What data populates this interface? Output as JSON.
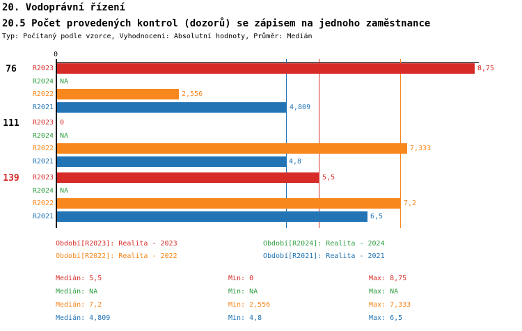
{
  "header": {
    "title": "20. Vodoprávní řízení",
    "subtitle": "20.5 Počet provedených kontrol (dozorů) se zápisem na jednoho zaměstnance",
    "meta": "Typ: Počítaný podle vzorce, Vyhodnocení: Absolutní hodnoty, Průměr: Medián"
  },
  "colors": {
    "R2023": "#d62b27",
    "R2024": "#2f9e41",
    "R2022": "#f8871d",
    "R2021": "#2274b4",
    "axis": "#000000",
    "group_label_default": "#000000"
  },
  "chart_data": {
    "type": "bar",
    "orientation": "horizontal",
    "title": "20.5 Počet provedených kontrol (dozorů) se zápisem na jednoho zaměstnance",
    "xlim": [
      0,
      8.75
    ],
    "zero_tick_label": "0",
    "series_order": [
      "R2023",
      "R2024",
      "R2022",
      "R2021"
    ],
    "groups": [
      {
        "label": "76",
        "label_color": "#000000",
        "bars": [
          {
            "series": "R2023",
            "value": 8.75,
            "value_label": "8,75"
          },
          {
            "series": "R2024",
            "value": null,
            "value_label": "NA"
          },
          {
            "series": "R2022",
            "value": 2.556,
            "value_label": "2,556"
          },
          {
            "series": "R2021",
            "value": 4.809,
            "value_label": "4,809"
          }
        ]
      },
      {
        "label": "111",
        "label_color": "#000000",
        "bars": [
          {
            "series": "R2023",
            "value": 0,
            "value_label": "0"
          },
          {
            "series": "R2024",
            "value": null,
            "value_label": "NA"
          },
          {
            "series": "R2022",
            "value": 7.333,
            "value_label": "7,333"
          },
          {
            "series": "R2021",
            "value": 4.8,
            "value_label": "4,8"
          }
        ]
      },
      {
        "label": "139",
        "label_color": "#d62b27",
        "bars": [
          {
            "series": "R2023",
            "value": 5.5,
            "value_label": "5,5"
          },
          {
            "series": "R2024",
            "value": null,
            "value_label": "NA"
          },
          {
            "series": "R2022",
            "value": 7.2,
            "value_label": "7,2"
          },
          {
            "series": "R2021",
            "value": 6.5,
            "value_label": "6,5"
          }
        ]
      }
    ],
    "median_lines": [
      {
        "series": "R2023",
        "value": 5.5
      },
      {
        "series": "R2022",
        "value": 7.2
      },
      {
        "series": "R2021",
        "value": 4.809
      }
    ]
  },
  "legend": {
    "rows": [
      [
        {
          "series": "R2023",
          "text": "Období[R2023]: Realita - 2023"
        },
        {
          "series": "R2024",
          "text": "Období[R2024]: Realita - 2024"
        }
      ],
      [
        {
          "series": "R2022",
          "text": "Období[R2022]: Realita - 2022"
        },
        {
          "series": "R2021",
          "text": "Období[R2021]: Realita - 2021"
        }
      ]
    ]
  },
  "stats": {
    "labels": {
      "median": "Medián:",
      "min": "Min:",
      "max": "Max:"
    },
    "rows": [
      {
        "series": "R2023",
        "median": "5,5",
        "min": "0",
        "max": "8,75"
      },
      {
        "series": "R2024",
        "median": "NA",
        "min": "NA",
        "max": "NA"
      },
      {
        "series": "R2022",
        "median": "7,2",
        "min": "2,556",
        "max": "7,333"
      },
      {
        "series": "R2021",
        "median": "4,809",
        "min": "4,8",
        "max": "6,5"
      }
    ]
  }
}
